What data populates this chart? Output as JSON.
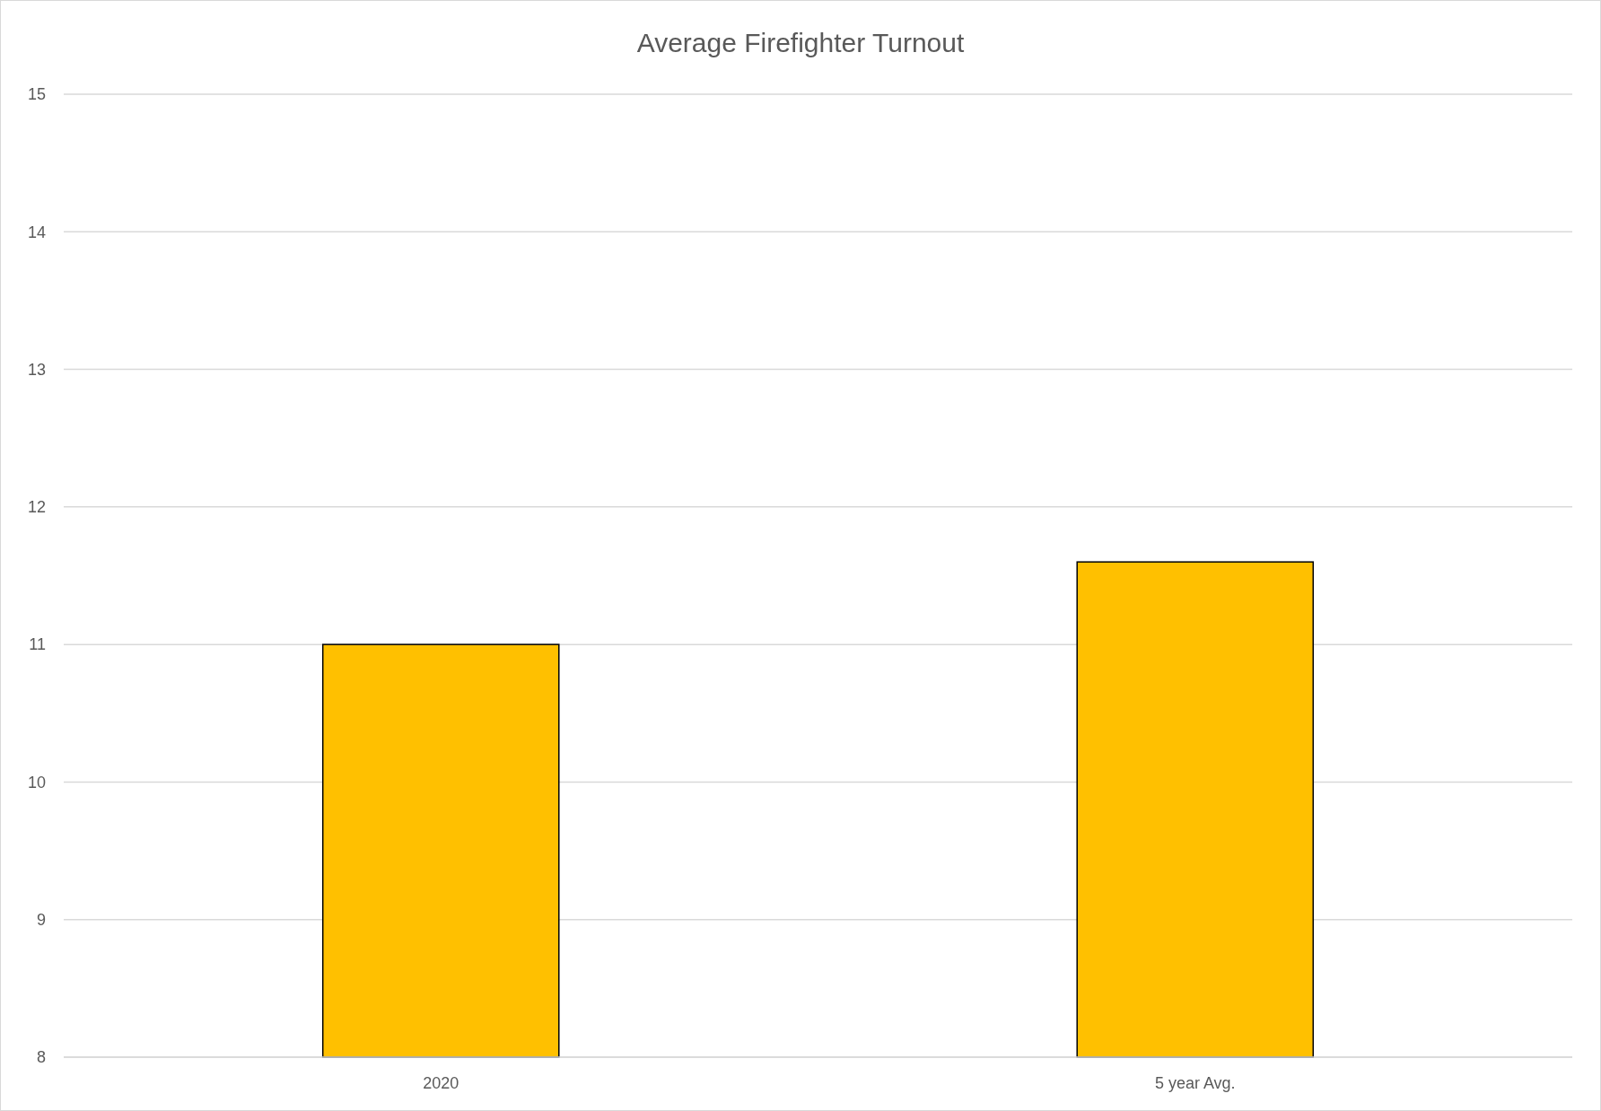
{
  "chart_data": {
    "type": "bar",
    "title": "Average Firefighter Turnout",
    "categories": [
      "2020",
      "5 year Avg."
    ],
    "values": [
      11,
      11.6
    ],
    "color": "#ffc000",
    "ylim": [
      8,
      15
    ],
    "yticks": [
      8,
      9,
      10,
      11,
      12,
      13,
      14,
      15
    ],
    "grid": "y"
  }
}
